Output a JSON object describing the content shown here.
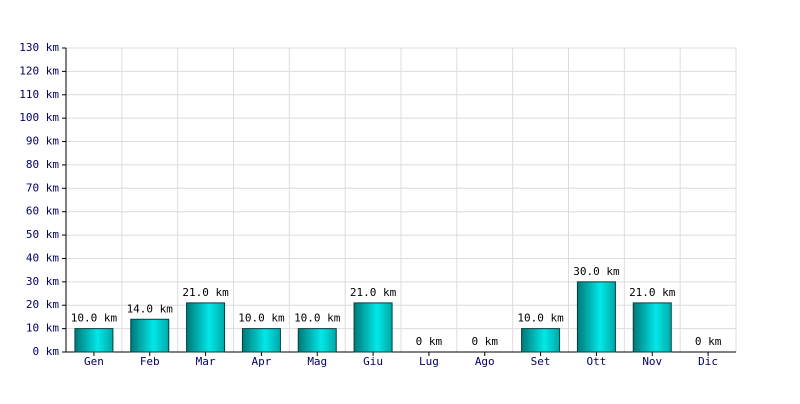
{
  "chart_data": {
    "type": "bar",
    "categories": [
      "Gen",
      "Feb",
      "Mar",
      "Apr",
      "Mag",
      "Giu",
      "Lug",
      "Ago",
      "Set",
      "Ott",
      "Nov",
      "Dic"
    ],
    "values": [
      10,
      14,
      21,
      10,
      10,
      21,
      0,
      0,
      10,
      30,
      21,
      0
    ],
    "value_labels": [
      "10.0 km",
      "14.0 km",
      "21.0 km",
      "10.0 km",
      "10.0 km",
      "21.0 km",
      "0 km",
      "0 km",
      "10.0 km",
      "30.0 km",
      "21.0 km",
      "0 km"
    ],
    "color": "#00e8e8",
    "ylim": [
      0,
      130
    ],
    "yticks": [
      {
        "value": 0,
        "label": "0 km"
      },
      {
        "value": 10,
        "label": "10 km"
      },
      {
        "value": 20,
        "label": "20 km"
      },
      {
        "value": 30,
        "label": "30 km"
      },
      {
        "value": 40,
        "label": "40 km"
      },
      {
        "value": 50,
        "label": "50 km"
      },
      {
        "value": 60,
        "label": "60 km"
      },
      {
        "value": 70,
        "label": "70 km"
      },
      {
        "value": 80,
        "label": "80 km"
      },
      {
        "value": 90,
        "label": "90 km"
      },
      {
        "value": 100,
        "label": "100 km"
      },
      {
        "value": 110,
        "label": "110 km"
      },
      {
        "value": 120,
        "label": "120 km"
      },
      {
        "value": 130,
        "label": "130 km"
      }
    ],
    "grid": true
  }
}
